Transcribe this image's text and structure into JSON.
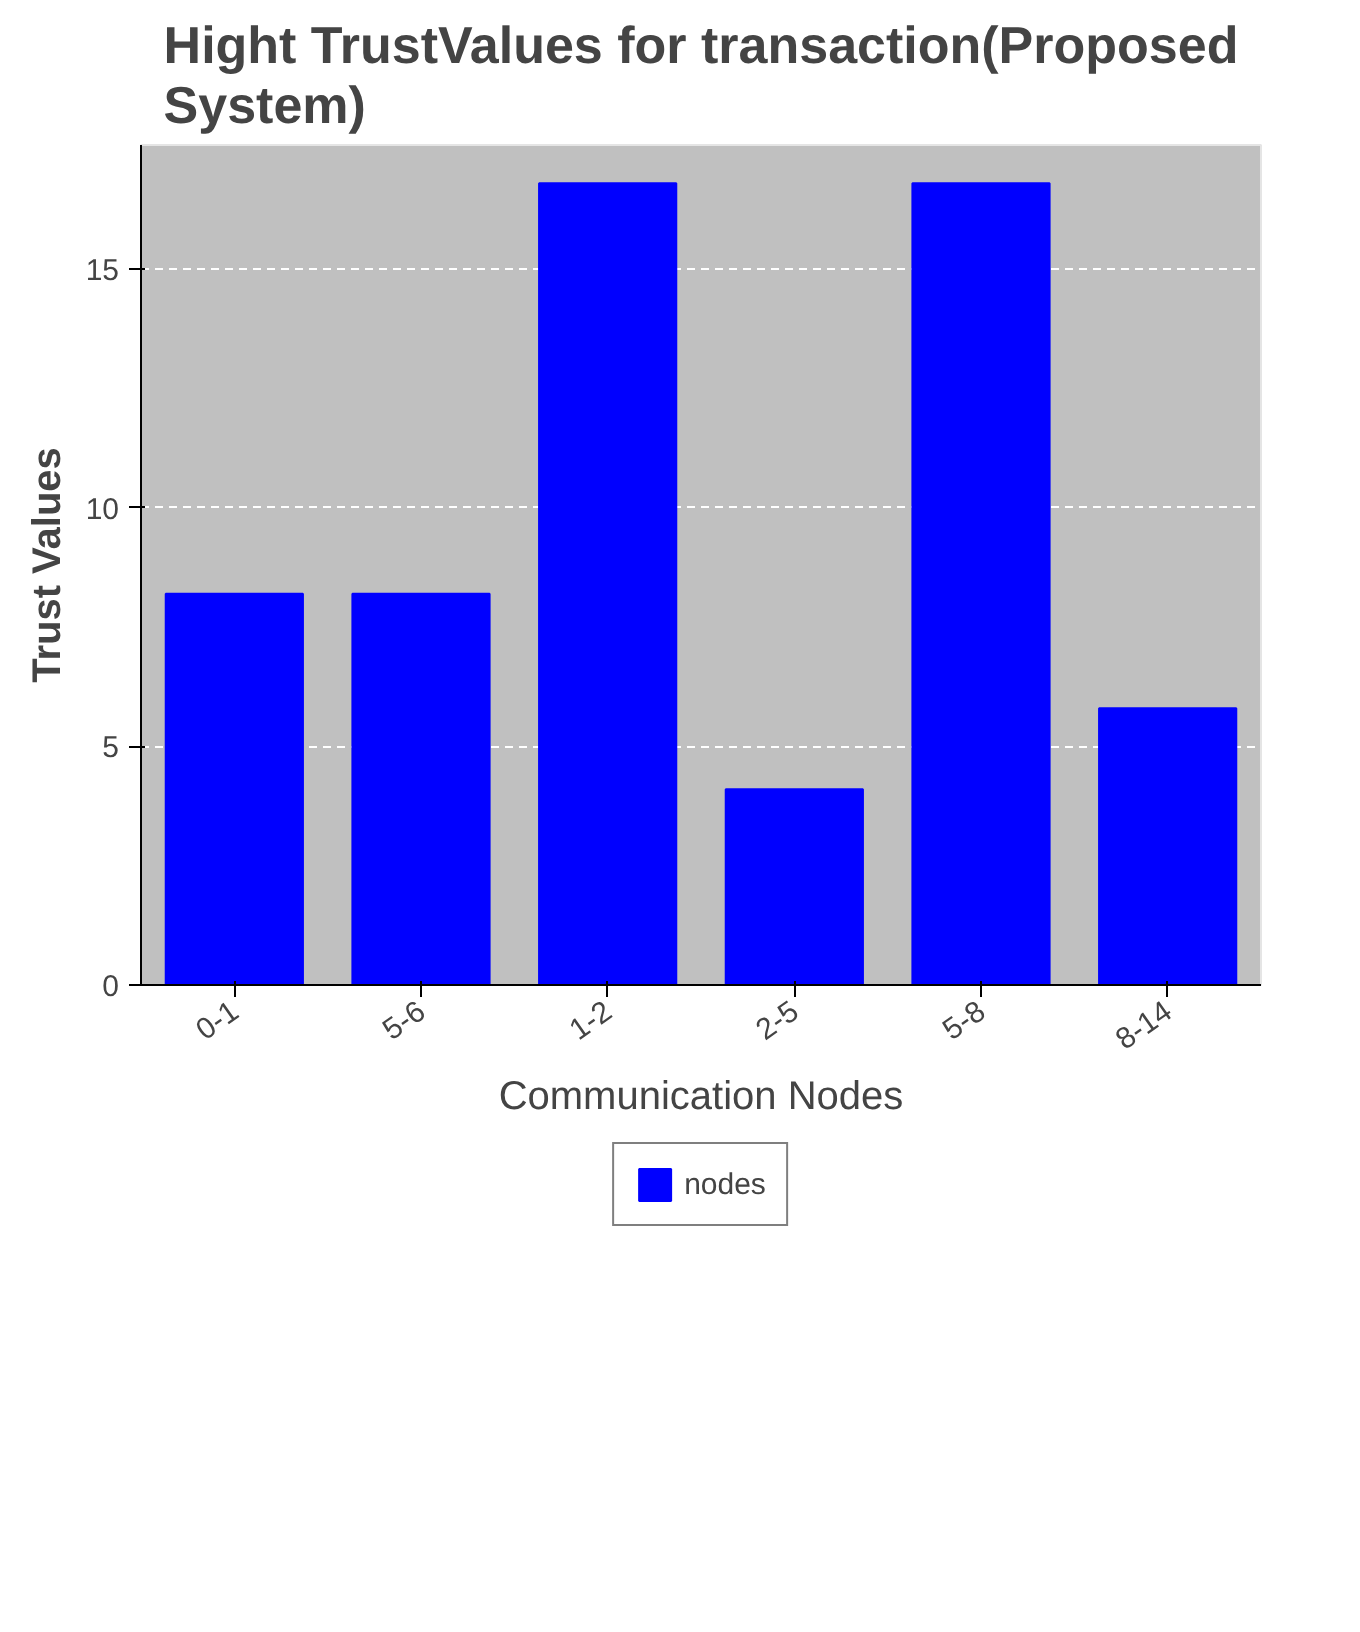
{
  "chart_data": {
    "type": "bar",
    "title": "Hight TrustValues for transaction(Proposed System)",
    "xlabel": "Communication Nodes",
    "ylabel": "Trust Values",
    "categories": [
      "0-1",
      "5-6",
      "1-2",
      "2-5",
      "5-8",
      "8-14"
    ],
    "series": [
      {
        "name": "nodes",
        "color": "#0000ff",
        "values": [
          8.2,
          8.2,
          16.8,
          4.1,
          16.8,
          5.8
        ]
      }
    ],
    "ylim": [
      0,
      17.6
    ],
    "yticks": [
      0,
      5,
      10,
      15
    ],
    "grid": "y",
    "legend": "bottom"
  }
}
